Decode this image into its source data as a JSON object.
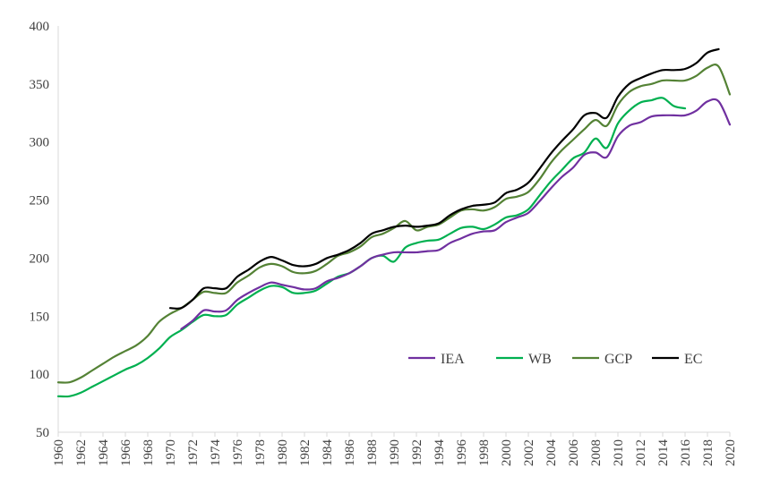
{
  "chart_data": {
    "type": "line",
    "title": "",
    "xlabel": "",
    "ylabel": "",
    "xlim": [
      1960,
      2020
    ],
    "ylim": [
      50,
      400
    ],
    "y_ticks": [
      "50",
      "100",
      "150",
      "200",
      "250",
      "300",
      "350",
      "400"
    ],
    "x_ticks": [
      "1960",
      "1962",
      "1964",
      "1966",
      "1968",
      "1970",
      "1972",
      "1974",
      "1976",
      "1978",
      "1980",
      "1982",
      "1984",
      "1986",
      "1988",
      "1990",
      "1992",
      "1994",
      "1996",
      "1998",
      "2000",
      "2002",
      "2004",
      "2006",
      "2008",
      "2010",
      "2012",
      "2014",
      "2016",
      "2018",
      "2020"
    ],
    "legend_position": "lower-right",
    "grid": false,
    "series": [
      {
        "name": "IEA",
        "color": "#7030a0",
        "x": [
          1971,
          1972,
          1973,
          1974,
          1975,
          1976,
          1977,
          1978,
          1979,
          1980,
          1981,
          1982,
          1983,
          1984,
          1985,
          1986,
          1987,
          1988,
          1989,
          1990,
          1991,
          1992,
          1993,
          1994,
          1995,
          1996,
          1997,
          1998,
          1999,
          2000,
          2001,
          2002,
          2003,
          2004,
          2005,
          2006,
          2007,
          2008,
          2009,
          2010,
          2011,
          2012,
          2013,
          2014,
          2015,
          2016,
          2017,
          2018,
          2019,
          2020
        ],
        "values": [
          139,
          146,
          155,
          154,
          155,
          164,
          170,
          175,
          179,
          177,
          175,
          173,
          174,
          180,
          183,
          187,
          193,
          200,
          203,
          205,
          205,
          205,
          206,
          207,
          213,
          217,
          221,
          223,
          224,
          231,
          235,
          239,
          249,
          260,
          270,
          278,
          289,
          291,
          287,
          305,
          314,
          317,
          322,
          323,
          323,
          323,
          327,
          335,
          335,
          315
        ]
      },
      {
        "name": "WB",
        "color": "#00b050",
        "x": [
          1960,
          1961,
          1962,
          1963,
          1964,
          1965,
          1966,
          1967,
          1968,
          1969,
          1970,
          1971,
          1972,
          1973,
          1974,
          1975,
          1976,
          1977,
          1978,
          1979,
          1980,
          1981,
          1982,
          1983,
          1984,
          1985,
          1986,
          1987,
          1988,
          1989,
          1990,
          1991,
          1992,
          1993,
          1994,
          1995,
          1996,
          1997,
          1998,
          1999,
          2000,
          2001,
          2002,
          2003,
          2004,
          2005,
          2006,
          2007,
          2008,
          2009,
          2010,
          2011,
          2012,
          2013,
          2014,
          2015,
          2016
        ],
        "values": [
          81,
          81,
          84,
          89,
          94,
          99,
          104,
          108,
          114,
          122,
          132,
          138,
          145,
          151,
          150,
          151,
          160,
          166,
          172,
          176,
          175,
          170,
          170,
          172,
          178,
          184,
          187,
          193,
          200,
          202,
          197,
          209,
          213,
          215,
          216,
          221,
          226,
          227,
          225,
          229,
          235,
          237,
          242,
          254,
          266,
          276,
          286,
          291,
          303,
          295,
          316,
          327,
          334,
          336,
          338,
          331,
          329
        ]
      },
      {
        "name": "GCP",
        "color": "#548235",
        "x": [
          1960,
          1961,
          1962,
          1963,
          1964,
          1965,
          1966,
          1967,
          1968,
          1969,
          1970,
          1971,
          1972,
          1973,
          1974,
          1975,
          1976,
          1977,
          1978,
          1979,
          1980,
          1981,
          1982,
          1983,
          1984,
          1985,
          1986,
          1987,
          1988,
          1989,
          1990,
          1991,
          1992,
          1993,
          1994,
          1995,
          1996,
          1997,
          1998,
          1999,
          2000,
          2001,
          2002,
          2003,
          2004,
          2005,
          2006,
          2007,
          2008,
          2009,
          2010,
          2011,
          2012,
          2013,
          2014,
          2015,
          2016,
          2017,
          2018,
          2019,
          2020
        ],
        "values": [
          93,
          93,
          97,
          103,
          109,
          115,
          120,
          125,
          133,
          145,
          152,
          157,
          164,
          171,
          170,
          170,
          179,
          185,
          192,
          195,
          193,
          188,
          187,
          189,
          195,
          202,
          205,
          210,
          218,
          221,
          226,
          232,
          224,
          227,
          229,
          235,
          241,
          242,
          241,
          244,
          251,
          253,
          257,
          268,
          282,
          293,
          302,
          311,
          319,
          314,
          332,
          343,
          348,
          350,
          353,
          353,
          353,
          357,
          364,
          365,
          341
        ]
      },
      {
        "name": "EC",
        "color": "#000000",
        "x": [
          1970,
          1971,
          1972,
          1973,
          1974,
          1975,
          1976,
          1977,
          1978,
          1979,
          1980,
          1981,
          1982,
          1983,
          1984,
          1985,
          1986,
          1987,
          1988,
          1989,
          1990,
          1991,
          1992,
          1993,
          1994,
          1995,
          1996,
          1997,
          1998,
          1999,
          2000,
          2001,
          2002,
          2003,
          2004,
          2005,
          2006,
          2007,
          2008,
          2009,
          2010,
          2011,
          2012,
          2013,
          2014,
          2015,
          2016,
          2017,
          2018,
          2019
        ],
        "values": [
          157,
          157,
          164,
          174,
          174,
          174,
          184,
          190,
          197,
          201,
          198,
          194,
          193,
          195,
          200,
          203,
          207,
          213,
          221,
          224,
          227,
          228,
          227,
          228,
          230,
          237,
          242,
          245,
          246,
          248,
          256,
          259,
          265,
          277,
          290,
          301,
          311,
          323,
          325,
          321,
          339,
          350,
          355,
          359,
          362,
          362,
          363,
          368,
          377,
          380
        ]
      }
    ]
  }
}
